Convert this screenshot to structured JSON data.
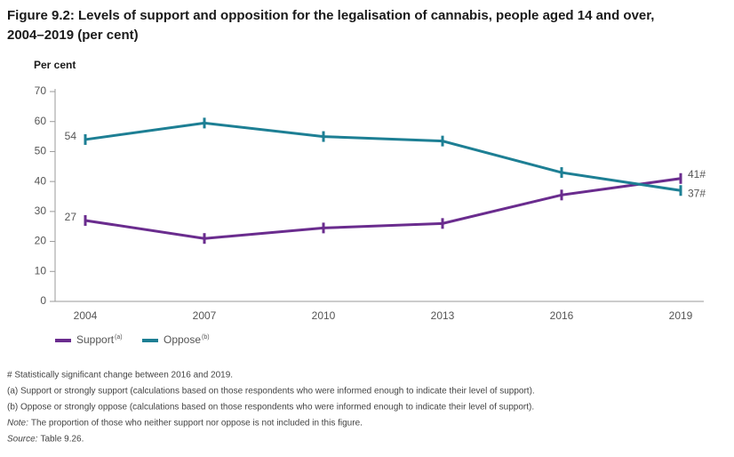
{
  "chart_data": {
    "type": "line",
    "title": "Figure 9.2: Levels of support and opposition for the legalisation of cannabis, people aged 14 and over, 2004–2019 (per cent)",
    "y_label": "Per cent",
    "categories": [
      "2004",
      "2007",
      "2010",
      "2013",
      "2016",
      "2019"
    ],
    "series": [
      {
        "name": "Support",
        "note": "(a)",
        "color": "#6a2c8e",
        "values": [
          27,
          21,
          24.5,
          26,
          35.5,
          41
        ],
        "value_labels": [
          "27",
          null,
          null,
          null,
          null,
          "41#"
        ]
      },
      {
        "name": "Oppose",
        "note": "(b)",
        "color": "#1d7f94",
        "values": [
          54,
          59.5,
          55,
          53.5,
          43,
          37
        ],
        "value_labels": [
          "54",
          null,
          null,
          null,
          null,
          "37#"
        ]
      }
    ],
    "ylim": [
      0,
      70
    ],
    "yticks": [
      0,
      10,
      20,
      30,
      40,
      50,
      60,
      70
    ],
    "grid": false,
    "footnotes": [
      {
        "text": "# Statistically significant change between 2016 and 2019."
      },
      {
        "text": "(a) Support or strongly support (calculations based on those respondents who were informed enough to indicate their level of support)."
      },
      {
        "text": "(b) Oppose or strongly oppose (calculations based on those respondents who were informed enough to indicate their level of support)."
      },
      {
        "label": "Note:",
        "text": "The proportion of those who neither support nor oppose is not included in this figure."
      },
      {
        "label": "Source:",
        "text": "Table 9.26."
      }
    ]
  }
}
